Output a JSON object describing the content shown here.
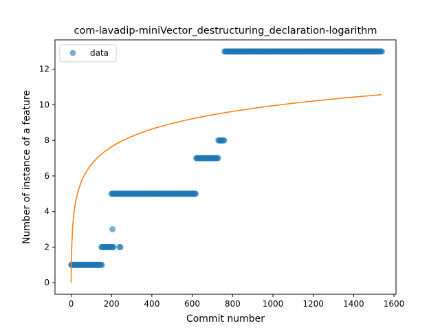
{
  "chart_data": {
    "type": "scatter",
    "title": "com-lavadip-miniVector_destructuring_declaration-logarithm",
    "xlabel": "Commit number",
    "ylabel": "Number of instance of a feature",
    "xlim": [
      -80,
      1610
    ],
    "ylim": [
      -0.65,
      13.65
    ],
    "xticks": [
      0,
      200,
      400,
      600,
      800,
      1000,
      1200,
      1400,
      1600
    ],
    "yticks": [
      0,
      2,
      4,
      6,
      8,
      10,
      12
    ],
    "legend": {
      "position": "top-left",
      "entries": [
        "data"
      ]
    },
    "grid": false,
    "colors": {
      "data": "#1f77b4",
      "fit": "#ff7f0e"
    },
    "series": [
      {
        "name": "data",
        "kind": "scatter",
        "segments": [
          {
            "x_start": 0,
            "x_end": 155,
            "y": 1
          },
          {
            "x_start": 150,
            "x_end": 210,
            "y": 2
          },
          {
            "x_start": 205,
            "x_end": 205,
            "y": 3
          },
          {
            "x_start": 200,
            "x_end": 240,
            "y": 5
          },
          {
            "x_start": 240,
            "x_end": 245,
            "y": 2
          },
          {
            "x_start": 245,
            "x_end": 620,
            "y": 5
          },
          {
            "x_start": 620,
            "x_end": 730,
            "y": 7
          },
          {
            "x_start": 730,
            "x_end": 760,
            "y": 8
          },
          {
            "x_start": 760,
            "x_end": 1540,
            "y": 13
          }
        ]
      },
      {
        "kind": "line",
        "model": "a + b*ln(x+1)",
        "a": 0,
        "b": 1.44,
        "x_range": [
          0,
          1540
        ]
      }
    ]
  }
}
